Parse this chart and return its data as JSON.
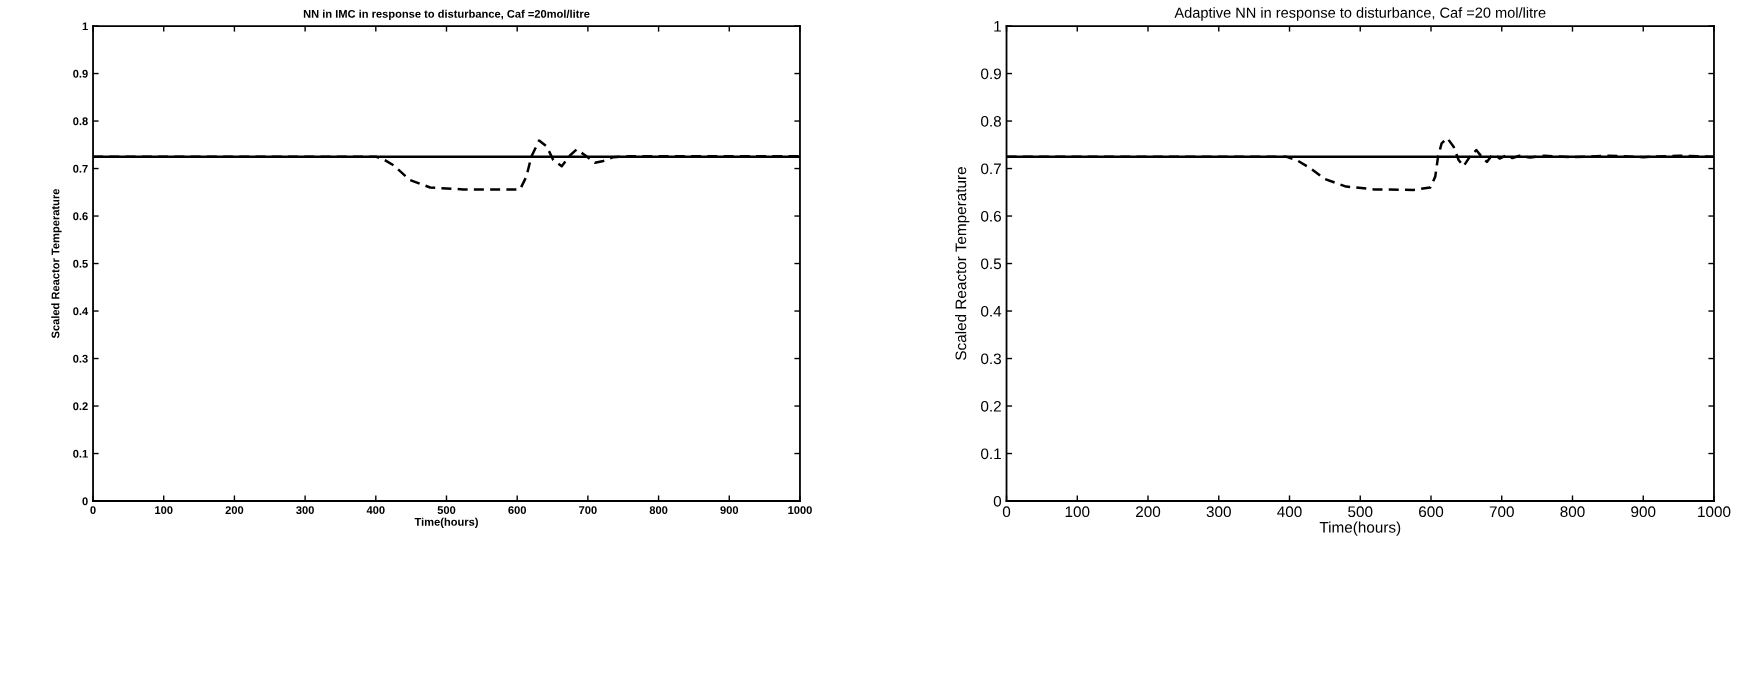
{
  "chart_data": [
    {
      "type": "line",
      "title": "NN in IMC in response to disturbance, Caf =20mol/litre",
      "xlabel": "Time(hours)",
      "ylabel": "Scaled Reactor Temperature",
      "xlim": [
        0,
        1000
      ],
      "ylim": [
        0,
        1
      ],
      "xticks": [
        0,
        100,
        200,
        300,
        400,
        500,
        600,
        700,
        800,
        900,
        1000
      ],
      "yticks": [
        0,
        0.1,
        0.2,
        0.3,
        0.4,
        0.5,
        0.6,
        0.7,
        0.8,
        0.9,
        1
      ],
      "series": [
        {
          "color": "#000000",
          "line_style": "solid",
          "x": [
            0,
            1000
          ],
          "values": [
            0.725,
            0.725
          ]
        },
        {
          "color": "#000000",
          "line_style": "dashed",
          "x": [
            0,
            400,
            410,
            425,
            448,
            477,
            524,
            604,
            613,
            620,
            631,
            642,
            651,
            663,
            675,
            684,
            696,
            710,
            722,
            736,
            760,
            1000
          ],
          "values": [
            0.725,
            0.725,
            0.72,
            0.707,
            0.676,
            0.66,
            0.656,
            0.656,
            0.683,
            0.725,
            0.759,
            0.746,
            0.718,
            0.705,
            0.728,
            0.74,
            0.728,
            0.712,
            0.716,
            0.724,
            0.726,
            0.726
          ]
        }
      ]
    },
    {
      "type": "line",
      "title": "Adaptive NN in response to disturbance, Caf =20 mol/litre",
      "xlabel": "Time(hours)",
      "ylabel": "Scaled Reactor Temperature",
      "xlim": [
        0,
        1000
      ],
      "ylim": [
        0,
        1
      ],
      "xticks": [
        0,
        100,
        200,
        300,
        400,
        500,
        600,
        700,
        800,
        900,
        1000
      ],
      "yticks": [
        0,
        0.1,
        0.2,
        0.3,
        0.4,
        0.5,
        0.6,
        0.7,
        0.8,
        0.9,
        1
      ],
      "series": [
        {
          "color": "#000000",
          "line_style": "solid",
          "x": [
            0,
            1000
          ],
          "values": [
            0.725,
            0.725
          ]
        },
        {
          "color": "#000000",
          "line_style": "dashed",
          "x": [
            0,
            395,
            410,
            430,
            450,
            480,
            520,
            575,
            599,
            606,
            610,
            615,
            623,
            632,
            639,
            646,
            655,
            664,
            672,
            679,
            686,
            690,
            697,
            707,
            715,
            725,
            740,
            760,
            800,
            850,
            900,
            950,
            1000
          ],
          "values": [
            0.725,
            0.725,
            0.718,
            0.7,
            0.678,
            0.662,
            0.656,
            0.655,
            0.66,
            0.683,
            0.725,
            0.753,
            0.764,
            0.746,
            0.718,
            0.705,
            0.725,
            0.739,
            0.724,
            0.714,
            0.728,
            0.73,
            0.721,
            0.728,
            0.722,
            0.727,
            0.723,
            0.727,
            0.724,
            0.727,
            0.724,
            0.727,
            0.725
          ]
        }
      ]
    }
  ]
}
